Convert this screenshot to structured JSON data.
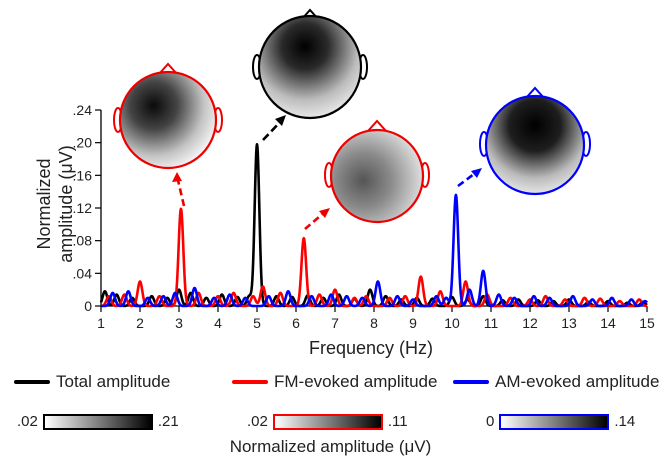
{
  "chart_data": {
    "type": "line",
    "xlabel": "Frequency (Hz)",
    "ylabel_line1": "Normalized",
    "ylabel_line2": "amplitude (μV)",
    "xlim": [
      1,
      15
    ],
    "ylim": [
      0,
      0.24
    ],
    "x_ticks": [
      "1",
      "2",
      "3",
      "4",
      "5",
      "6",
      "7",
      "8",
      "9",
      "10",
      "11",
      "12",
      "13",
      "14",
      "15"
    ],
    "y_ticks": [
      "0",
      ".04",
      ".08",
      ".12",
      ".16",
      ".20",
      ".24"
    ],
    "grid": false,
    "series": [
      {
        "name": "Total amplitude",
        "color": "#000000",
        "peaks": [
          [
            1.1,
            0.018
          ],
          [
            1.4,
            0.014
          ],
          [
            1.8,
            0.01
          ],
          [
            2.3,
            0.012
          ],
          [
            2.7,
            0.01
          ],
          [
            3.0,
            0.02
          ],
          [
            3.3,
            0.016
          ],
          [
            3.7,
            0.01
          ],
          [
            4.1,
            0.014
          ],
          [
            4.5,
            0.011
          ],
          [
            4.8,
            0.012
          ],
          [
            5.0,
            0.198
          ],
          [
            5.5,
            0.012
          ],
          [
            5.9,
            0.011
          ],
          [
            6.3,
            0.013
          ],
          [
            6.7,
            0.01
          ],
          [
            7.1,
            0.014
          ],
          [
            7.5,
            0.009
          ],
          [
            7.9,
            0.02
          ],
          [
            8.3,
            0.012
          ],
          [
            8.7,
            0.008
          ],
          [
            9.1,
            0.01
          ],
          [
            9.5,
            0.009
          ],
          [
            10.0,
            0.011
          ],
          [
            10.4,
            0.008
          ],
          [
            10.8,
            0.012
          ],
          [
            11.3,
            0.007
          ],
          [
            11.7,
            0.008
          ],
          [
            12.2,
            0.007
          ],
          [
            12.6,
            0.006
          ],
          [
            13.0,
            0.008
          ],
          [
            13.5,
            0.005
          ],
          [
            14.0,
            0.006
          ],
          [
            14.5,
            0.004
          ],
          [
            14.9,
            0.005
          ]
        ]
      },
      {
        "name": "FM-evoked amplitude",
        "color": "#ff0000",
        "peaks": [
          [
            1.2,
            0.012
          ],
          [
            1.6,
            0.014
          ],
          [
            2.0,
            0.03
          ],
          [
            2.5,
            0.012
          ],
          [
            3.05,
            0.119
          ],
          [
            3.5,
            0.016
          ],
          [
            4.0,
            0.012
          ],
          [
            4.4,
            0.016
          ],
          [
            4.9,
            0.012
          ],
          [
            5.15,
            0.024
          ],
          [
            5.6,
            0.016
          ],
          [
            6.2,
            0.083
          ],
          [
            6.6,
            0.014
          ],
          [
            7.0,
            0.02
          ],
          [
            7.5,
            0.01
          ],
          [
            7.8,
            0.012
          ],
          [
            8.4,
            0.01
          ],
          [
            8.8,
            0.012
          ],
          [
            9.2,
            0.036
          ],
          [
            9.7,
            0.018
          ],
          [
            10.35,
            0.03
          ],
          [
            10.9,
            0.014
          ],
          [
            11.5,
            0.01
          ],
          [
            12.0,
            0.008
          ],
          [
            12.4,
            0.012
          ],
          [
            12.9,
            0.008
          ],
          [
            13.4,
            0.01
          ],
          [
            13.8,
            0.009
          ],
          [
            14.3,
            0.006
          ],
          [
            14.8,
            0.008
          ]
        ]
      },
      {
        "name": "AM-evoked amplitude",
        "color": "#0000ff",
        "peaks": [
          [
            1.3,
            0.016
          ],
          [
            1.7,
            0.018
          ],
          [
            2.2,
            0.01
          ],
          [
            2.6,
            0.012
          ],
          [
            2.9,
            0.016
          ],
          [
            3.4,
            0.022
          ],
          [
            3.9,
            0.01
          ],
          [
            4.3,
            0.014
          ],
          [
            4.7,
            0.01
          ],
          [
            5.3,
            0.012
          ],
          [
            5.8,
            0.018
          ],
          [
            6.4,
            0.012
          ],
          [
            6.9,
            0.014
          ],
          [
            7.3,
            0.012
          ],
          [
            7.7,
            0.01
          ],
          [
            8.1,
            0.03
          ],
          [
            8.6,
            0.012
          ],
          [
            9.0,
            0.008
          ],
          [
            9.6,
            0.012
          ],
          [
            9.85,
            0.01
          ],
          [
            10.1,
            0.136
          ],
          [
            10.45,
            0.02
          ],
          [
            10.8,
            0.043
          ],
          [
            11.2,
            0.014
          ],
          [
            11.6,
            0.01
          ],
          [
            12.1,
            0.012
          ],
          [
            12.5,
            0.01
          ],
          [
            13.1,
            0.012
          ],
          [
            13.6,
            0.008
          ],
          [
            14.1,
            0.01
          ],
          [
            14.6,
            0.008
          ],
          [
            14.95,
            0.006
          ]
        ]
      }
    ],
    "colorbars": [
      {
        "min": ".02",
        "max": ".21",
        "border": "#000000"
      },
      {
        "min": ".02",
        "max": ".11",
        "border": "#ff0000"
      },
      {
        "min": "0",
        "max": ".14",
        "border": "#0000ff"
      }
    ],
    "colorbar_label": "Normalized amplitude (μV)"
  }
}
